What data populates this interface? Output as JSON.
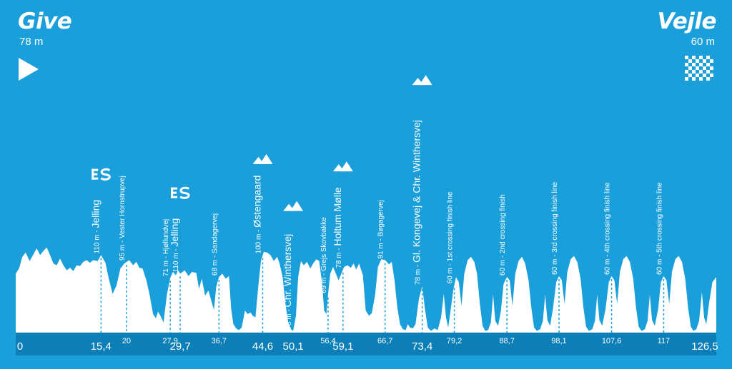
{
  "start": {
    "name": "Give",
    "altitude": "78 m"
  },
  "finish": {
    "name": "Vejle",
    "altitude": "60 m"
  },
  "chart_data": {
    "type": "area",
    "title": "",
    "xlabel": "",
    "ylabel": "",
    "xlim": [
      0,
      126.5
    ],
    "grid": false,
    "legend": "none",
    "colors": {
      "background": "#1a9fdb",
      "profile": "#ffffff",
      "axis_strip": "#0d7fb8",
      "marker_line": "#1a9fdb"
    },
    "km_ticks": [
      "0",
      "15,4",
      "20",
      "27,9",
      "29,7",
      "36,7",
      "44,6",
      "50,1",
      "56,4",
      "59,1",
      "66,7",
      "73,4",
      "79,2",
      "88,7",
      "98,1",
      "107,6",
      "117",
      "126,5"
    ],
    "km_values": [
      0,
      15.4,
      20,
      27.9,
      29.7,
      36.7,
      44.6,
      50.1,
      56.4,
      59.1,
      66.7,
      73.4,
      79.2,
      88.7,
      98.1,
      107.6,
      117,
      126.5
    ],
    "km_major": [
      0,
      15.4,
      29.7,
      44.6,
      50.1,
      59.1,
      73.4,
      126.5
    ],
    "waypoints": [
      {
        "km": 15.4,
        "minor": "110 m - ",
        "major": "Jelling",
        "icon": "sprint-icon"
      },
      {
        "km": 20,
        "minor": "95 m - Vester Hornstrupvej",
        "major": "",
        "icon": ""
      },
      {
        "km": 27.9,
        "minor": "71 m - Hjøllundvej",
        "major": "",
        "icon": ""
      },
      {
        "km": 29.7,
        "minor": "110 m - ",
        "major": "Jelling",
        "icon": "sprint-icon"
      },
      {
        "km": 36.7,
        "minor": "68 m - Sandagervej",
        "major": "",
        "icon": ""
      },
      {
        "km": 44.6,
        "minor": "100 m - ",
        "major": "Østengaard",
        "icon": "climb-icon"
      },
      {
        "km": 50.1,
        "minor": "78 m - ",
        "major": "Chr. Winthersvej",
        "icon": "climb-icon"
      },
      {
        "km": 56.4,
        "minor": "69 m - Grejs Skovbakke",
        "major": "",
        "icon": ""
      },
      {
        "km": 59.1,
        "minor": "78 m - ",
        "major": "Holtum Mølle",
        "icon": "climb-icon"
      },
      {
        "km": 66.7,
        "minor": "91 m - Bøgagervej",
        "major": "",
        "icon": ""
      },
      {
        "km": 73.4,
        "minor": "78 m - ",
        "major": "Gl. Kongevej & Chr. Winthersvej",
        "icon": "climb-icon"
      },
      {
        "km": 79.2,
        "minor": "60 m - 1st crossing finish line",
        "major": "",
        "icon": ""
      },
      {
        "km": 88.7,
        "minor": "60 m - 2nd crossing finish",
        "major": "",
        "icon": ""
      },
      {
        "km": 98.1,
        "minor": "60 m - 3rd crossing finish line",
        "major": "",
        "icon": ""
      },
      {
        "km": 107.6,
        "minor": "60 m - 4th crossing finish line",
        "major": "",
        "icon": ""
      },
      {
        "km": 117,
        "minor": "60 m - 5th crossing finish line",
        "major": "",
        "icon": ""
      }
    ],
    "profile": {
      "unit_x": "km",
      "points": [
        [
          0,
          0.7
        ],
        [
          0.6,
          0.76
        ],
        [
          1.2,
          0.9
        ],
        [
          1.8,
          0.95
        ],
        [
          2.5,
          0.85
        ],
        [
          3.2,
          0.93
        ],
        [
          3.8,
          1.0
        ],
        [
          4.4,
          0.92
        ],
        [
          5,
          0.97
        ],
        [
          5.6,
          1.01
        ],
        [
          6.2,
          0.92
        ],
        [
          6.8,
          0.82
        ],
        [
          7.4,
          0.8
        ],
        [
          8,
          0.88
        ],
        [
          8.6,
          0.8
        ],
        [
          9.2,
          0.74
        ],
        [
          9.8,
          0.77
        ],
        [
          10.4,
          0.73
        ],
        [
          11,
          0.8
        ],
        [
          11.6,
          0.79
        ],
        [
          12.2,
          0.84
        ],
        [
          12.8,
          0.86
        ],
        [
          13.4,
          0.83
        ],
        [
          14,
          0.86
        ],
        [
          14.8,
          0.85
        ],
        [
          15.4,
          0.92
        ],
        [
          16.2,
          0.83
        ],
        [
          16.8,
          0.64
        ],
        [
          17.5,
          0.46
        ],
        [
          18.2,
          0.56
        ],
        [
          18.9,
          0.76
        ],
        [
          19.6,
          0.82
        ],
        [
          20.5,
          0.86
        ],
        [
          21.2,
          0.8
        ],
        [
          21.8,
          0.84
        ],
        [
          22.3,
          0.77
        ],
        [
          22.9,
          0.76
        ],
        [
          23.6,
          0.62
        ],
        [
          24.2,
          0.44
        ],
        [
          24.8,
          0.22
        ],
        [
          25.3,
          0.17
        ],
        [
          25.7,
          0.25
        ],
        [
          26.2,
          0.19
        ],
        [
          26.7,
          0.12
        ],
        [
          27.3,
          0.45
        ],
        [
          27.9,
          0.65
        ],
        [
          28.4,
          0.72
        ],
        [
          28.9,
          0.68
        ],
        [
          29.3,
          0.74
        ],
        [
          29.7,
          0.7
        ],
        [
          30.5,
          0.74
        ],
        [
          31.2,
          0.67
        ],
        [
          31.8,
          0.72
        ],
        [
          32.6,
          0.71
        ],
        [
          33.1,
          0.52
        ],
        [
          33.6,
          0.64
        ],
        [
          34.2,
          0.44
        ],
        [
          34.8,
          0.5
        ],
        [
          35.3,
          0.38
        ],
        [
          35.8,
          0.27
        ],
        [
          36.2,
          0.54
        ],
        [
          36.7,
          0.66
        ],
        [
          37.3,
          0.7
        ],
        [
          37.9,
          0.64
        ],
        [
          38.5,
          0.67
        ],
        [
          38.9,
          0.28
        ],
        [
          39.3,
          0.1
        ],
        [
          39.8,
          0.05
        ],
        [
          40.3,
          0.03
        ],
        [
          40.8,
          0.06
        ],
        [
          41.4,
          0.26
        ],
        [
          41.9,
          0.22
        ],
        [
          42.4,
          0.24
        ],
        [
          42.8,
          0.2
        ],
        [
          43.3,
          0.18
        ],
        [
          43.8,
          0.55
        ],
        [
          44.3,
          0.86
        ],
        [
          44.8,
          0.96
        ],
        [
          45.4,
          0.95
        ],
        [
          46,
          0.92
        ],
        [
          46.6,
          0.85
        ],
        [
          47.2,
          0.9
        ],
        [
          47.6,
          0.83
        ],
        [
          48.2,
          0.66
        ],
        [
          48.7,
          0.34
        ],
        [
          49.2,
          0.12
        ],
        [
          49.7,
          0.04
        ],
        [
          50.1,
          0.02
        ],
        [
          50.6,
          0.2
        ],
        [
          51,
          0.66
        ],
        [
          51.5,
          0.85
        ],
        [
          52,
          0.8
        ],
        [
          52.6,
          0.84
        ],
        [
          53.2,
          0.76
        ],
        [
          53.7,
          0.82
        ],
        [
          54.3,
          0.87
        ],
        [
          54.8,
          0.85
        ],
        [
          55.3,
          0.6
        ],
        [
          55.7,
          0.26
        ],
        [
          56.1,
          0.22
        ],
        [
          56.4,
          0.45
        ],
        [
          56.8,
          0.7
        ],
        [
          57.3,
          0.78
        ],
        [
          57.8,
          0.7
        ],
        [
          58.3,
          0.62
        ],
        [
          58.8,
          0.7
        ],
        [
          59.3,
          0.78
        ],
        [
          59.9,
          0.8
        ],
        [
          60.5,
          0.77
        ],
        [
          61,
          0.82
        ],
        [
          61.5,
          0.75
        ],
        [
          62,
          0.82
        ],
        [
          62.7,
          0.68
        ],
        [
          63.2,
          0.26
        ],
        [
          63.8,
          0.2
        ],
        [
          64.3,
          0.23
        ],
        [
          64.9,
          0.45
        ],
        [
          65.4,
          0.78
        ],
        [
          66,
          0.87
        ],
        [
          66.7,
          0.86
        ],
        [
          67.4,
          0.81
        ],
        [
          67.9,
          0.84
        ],
        [
          68.4,
          0.62
        ],
        [
          68.9,
          0.3
        ],
        [
          69.4,
          0.1
        ],
        [
          69.9,
          0.04
        ],
        [
          70.4,
          0.03
        ],
        [
          70.8,
          0.1
        ],
        [
          71.2,
          0.06
        ],
        [
          71.7,
          0.05
        ],
        [
          72.2,
          0.1
        ],
        [
          72.8,
          0.4
        ],
        [
          73.4,
          0.55
        ],
        [
          73.9,
          0.28
        ],
        [
          74.4,
          0.06
        ],
        [
          75,
          0.02
        ],
        [
          75.6,
          0.05
        ],
        [
          76.2,
          0.03
        ],
        [
          76.8,
          0.18
        ],
        [
          77.3,
          0.46
        ],
        [
          77.7,
          0.18
        ],
        [
          78.1,
          0.06
        ],
        [
          78.5,
          0.25
        ],
        [
          79,
          0.5
        ],
        [
          79.5,
          0.66
        ],
        [
          80,
          0.6
        ],
        [
          80.5,
          0.32
        ],
        [
          81,
          0.7
        ],
        [
          81.6,
          0.86
        ],
        [
          82.2,
          0.9
        ],
        [
          82.8,
          0.84
        ],
        [
          83.3,
          0.7
        ],
        [
          83.8,
          0.35
        ],
        [
          84.3,
          0.08
        ],
        [
          84.8,
          0.02
        ],
        [
          85.3,
          0.03
        ],
        [
          85.8,
          0.12
        ],
        [
          86.2,
          0.45
        ],
        [
          86.6,
          0.14
        ],
        [
          87.1,
          0.08
        ],
        [
          87.6,
          0.25
        ],
        [
          88.1,
          0.58
        ],
        [
          88.7,
          0.66
        ],
        [
          89.2,
          0.62
        ],
        [
          89.7,
          0.32
        ],
        [
          90.2,
          0.7
        ],
        [
          90.8,
          0.85
        ],
        [
          91.4,
          0.9
        ],
        [
          92,
          0.82
        ],
        [
          92.6,
          0.62
        ],
        [
          93.1,
          0.3
        ],
        [
          93.6,
          0.06
        ],
        [
          94.1,
          0.02
        ],
        [
          94.7,
          0.04
        ],
        [
          95.2,
          0.14
        ],
        [
          95.6,
          0.45
        ],
        [
          96,
          0.15
        ],
        [
          96.5,
          0.08
        ],
        [
          97,
          0.28
        ],
        [
          97.6,
          0.6
        ],
        [
          98.1,
          0.67
        ],
        [
          98.6,
          0.62
        ],
        [
          99.1,
          0.34
        ],
        [
          99.6,
          0.72
        ],
        [
          100.2,
          0.87
        ],
        [
          100.8,
          0.91
        ],
        [
          101.4,
          0.84
        ],
        [
          102,
          0.64
        ],
        [
          102.5,
          0.3
        ],
        [
          103,
          0.07
        ],
        [
          103.5,
          0.02
        ],
        [
          104.1,
          0.04
        ],
        [
          104.6,
          0.14
        ],
        [
          105,
          0.45
        ],
        [
          105.4,
          0.15
        ],
        [
          105.9,
          0.08
        ],
        [
          106.5,
          0.28
        ],
        [
          107.1,
          0.6
        ],
        [
          107.6,
          0.67
        ],
        [
          108.1,
          0.62
        ],
        [
          108.6,
          0.34
        ],
        [
          109.1,
          0.72
        ],
        [
          109.7,
          0.87
        ],
        [
          110.3,
          0.91
        ],
        [
          110.9,
          0.84
        ],
        [
          111.5,
          0.64
        ],
        [
          112,
          0.3
        ],
        [
          112.5,
          0.07
        ],
        [
          113,
          0.02
        ],
        [
          113.6,
          0.04
        ],
        [
          114.1,
          0.14
        ],
        [
          114.5,
          0.45
        ],
        [
          114.9,
          0.15
        ],
        [
          115.4,
          0.08
        ],
        [
          116,
          0.28
        ],
        [
          116.5,
          0.6
        ],
        [
          117,
          0.67
        ],
        [
          117.5,
          0.62
        ],
        [
          118,
          0.34
        ],
        [
          118.5,
          0.72
        ],
        [
          119.1,
          0.87
        ],
        [
          119.7,
          0.91
        ],
        [
          120.3,
          0.84
        ],
        [
          120.9,
          0.64
        ],
        [
          121.4,
          0.3
        ],
        [
          121.9,
          0.07
        ],
        [
          122.4,
          0.02
        ],
        [
          122.9,
          0.04
        ],
        [
          123.4,
          0.14
        ],
        [
          123.9,
          0.48
        ],
        [
          124.3,
          0.18
        ],
        [
          124.7,
          0.1
        ],
        [
          125.2,
          0.35
        ],
        [
          125.8,
          0.6
        ],
        [
          126.5,
          0.66
        ]
      ]
    }
  }
}
